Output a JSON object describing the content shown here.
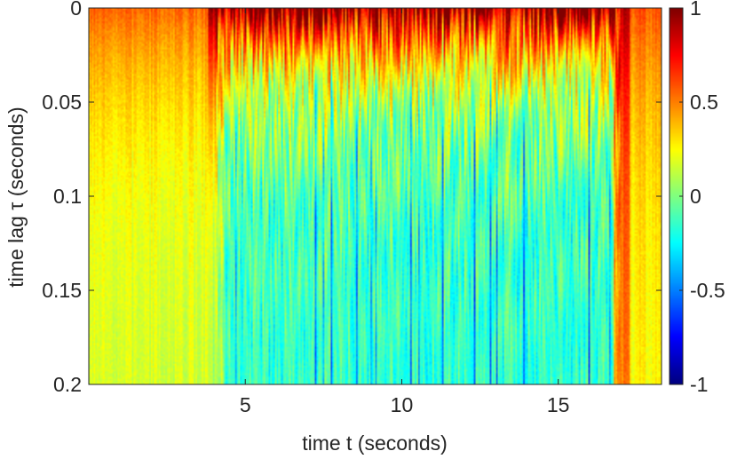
{
  "chart_data": {
    "type": "heatmap",
    "title": "",
    "xlabel": "time t (seconds)",
    "ylabel": "time lag τ (seconds)",
    "xlim": [
      0,
      18.3
    ],
    "ylim": [
      0,
      0.2
    ],
    "y_reversed": true,
    "x_ticks": [
      {
        "value": 5,
        "label": "5"
      },
      {
        "value": 10,
        "label": "10"
      },
      {
        "value": 15,
        "label": "15"
      }
    ],
    "y_ticks": [
      {
        "value": 0,
        "label": "0"
      },
      {
        "value": 0.05,
        "label": "0.05"
      },
      {
        "value": 0.1,
        "label": "0.1"
      },
      {
        "value": 0.15,
        "label": "0.15"
      },
      {
        "value": 0.2,
        "label": "0.2"
      }
    ],
    "colorbar": {
      "colormap": "jet",
      "clim": [
        -1,
        1
      ],
      "ticks": [
        {
          "value": 1,
          "label": "1"
        },
        {
          "value": 0.5,
          "label": "0.5"
        },
        {
          "value": 0,
          "label": "0"
        },
        {
          "value": -0.5,
          "label": "-0.5"
        },
        {
          "value": -1,
          "label": "-1"
        }
      ]
    },
    "regions": [
      {
        "t_range": [
          0,
          3.8
        ],
        "description": "weak positive correlation",
        "value_at_zero_lag": 0.55,
        "value_at_large_lag": 0.15
      },
      {
        "t_range": [
          3.8,
          4.3
        ],
        "description": "transition",
        "value_at_zero_lag": 0.95,
        "value_at_large_lag": 0.05
      },
      {
        "t_range": [
          4.3,
          16.8
        ],
        "description": "strong correlation near zero lag decaying to ~0 with streaks",
        "value_at_zero_lag": 0.95,
        "value_at_large_lag": -0.15
      },
      {
        "t_range": [
          16.8,
          17.3
        ],
        "description": "transition",
        "value_at_zero_lag": 0.9,
        "value_at_large_lag": 0.5
      },
      {
        "t_range": [
          17.3,
          18.3
        ],
        "description": "moderate positive correlation",
        "value_at_zero_lag": 0.6,
        "value_at_large_lag": 0.25
      }
    ]
  }
}
